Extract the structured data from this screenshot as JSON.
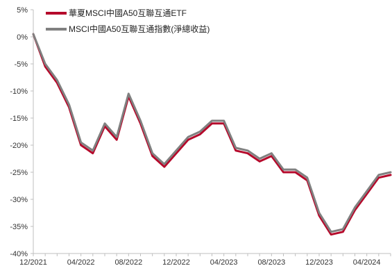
{
  "chart_data": {
    "type": "line",
    "title": "",
    "xlabel": "",
    "ylabel": "",
    "ylim": [
      -40,
      5
    ],
    "y_unit": "%",
    "y_ticks": [
      5,
      0,
      -5,
      -10,
      -15,
      -20,
      -25,
      -30,
      -35,
      -40
    ],
    "y_tick_labels": [
      "5%",
      "0%",
      "-5%",
      "-10%",
      "-15%",
      "-20%",
      "-25%",
      "-30%",
      "-35%",
      "-40%"
    ],
    "x_range": [
      "2021-12",
      "2024-06"
    ],
    "x_tick_labels": [
      "12/2021",
      "04/2022",
      "08/2022",
      "12/2022",
      "04/2023",
      "08/2023",
      "12/2023",
      "04/2024"
    ],
    "grid": false,
    "legend": {
      "position": "top-left"
    },
    "x": [
      "2021-12",
      "2022-01",
      "2022-02",
      "2022-03",
      "2022-04",
      "2022-05",
      "2022-06",
      "2022-07",
      "2022-08",
      "2022-09",
      "2022-10",
      "2022-11",
      "2022-12",
      "2023-01",
      "2023-02",
      "2023-03",
      "2023-04",
      "2023-05",
      "2023-06",
      "2023-07",
      "2023-08",
      "2023-09",
      "2023-10",
      "2023-11",
      "2023-12",
      "2024-01",
      "2024-02",
      "2024-03",
      "2024-04",
      "2024-05",
      "2024-06"
    ],
    "series": [
      {
        "name": "華夏MSCI中國A50互聯互通ETF",
        "color": "#b5092b",
        "values": [
          0.5,
          -5.5,
          -8.5,
          -13,
          -20,
          -21.5,
          -16.5,
          -19,
          -11,
          -16,
          -22,
          -24,
          -21.5,
          -19,
          -18,
          -16,
          -16,
          -21,
          -21.5,
          -23,
          -22,
          -25,
          -25,
          -26.5,
          -33,
          -36.5,
          -36,
          -32,
          -29,
          -26,
          -25.5
        ]
      },
      {
        "name": "MSCI中國A50互聯互通指數(淨總收益)",
        "color": "#808080",
        "values": [
          0.5,
          -5,
          -8,
          -12.5,
          -19.5,
          -21,
          -16,
          -18.5,
          -10.5,
          -15.5,
          -21.5,
          -23.5,
          -21,
          -18.5,
          -17.5,
          -15.5,
          -15.5,
          -20.5,
          -21,
          -22.5,
          -21.5,
          -24.5,
          -24.5,
          -26,
          -32.5,
          -36,
          -35.5,
          -31.5,
          -28.5,
          -25.5,
          -25
        ]
      }
    ]
  }
}
